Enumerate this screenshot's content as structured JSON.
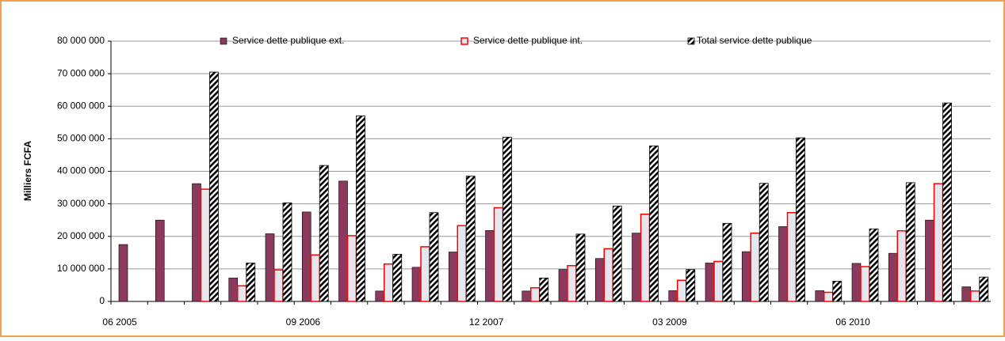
{
  "chart_data": {
    "type": "bar",
    "y_axis_label": "Milliers FCFA",
    "categories": [
      "06 2005",
      null,
      null,
      null,
      null,
      "09 2006",
      null,
      null,
      null,
      null,
      "12 2007",
      null,
      null,
      null,
      null,
      "03 2009",
      null,
      null,
      null,
      null,
      "06 2010",
      null,
      null,
      null
    ],
    "series": [
      {
        "name": "Service dette publique ext.",
        "color": "#8b3a5e",
        "values": [
          17500000,
          25000000,
          36200000,
          7200000,
          20800000,
          27500000,
          37000000,
          3200000,
          10500000,
          15200000,
          21800000,
          3200000,
          9800000,
          13200000,
          21000000,
          3300000,
          11800000,
          15300000,
          23000000,
          3300000,
          11700000,
          14800000,
          25000000,
          4500000
        ]
      },
      {
        "name": "Service dette publique int.",
        "color": "#ff0000",
        "values": [
          null,
          null,
          34500000,
          4800000,
          9700000,
          14300000,
          20200000,
          11500000,
          16800000,
          23300000,
          28800000,
          4200000,
          11000000,
          16200000,
          26800000,
          6500000,
          12300000,
          21000000,
          27300000,
          2800000,
          10700000,
          21700000,
          36200000,
          3200000
        ]
      },
      {
        "name": "Total service dette publique",
        "color": "#000000",
        "values": [
          null,
          null,
          70500000,
          11800000,
          30300000,
          41800000,
          57000000,
          14500000,
          27300000,
          38500000,
          50500000,
          7200000,
          20700000,
          29300000,
          47800000,
          9800000,
          24000000,
          36300000,
          50300000,
          6200000,
          22300000,
          36500000,
          61000000,
          7500000
        ]
      }
    ],
    "ylim": [
      0,
      80000000
    ],
    "yticks": [
      {
        "value": 0,
        "label": "0"
      },
      {
        "value": 10000000,
        "label": "10 000 000"
      },
      {
        "value": 20000000,
        "label": "20 000 000"
      },
      {
        "value": 30000000,
        "label": "30 000 000"
      },
      {
        "value": 40000000,
        "label": "40 000 000"
      },
      {
        "value": 50000000,
        "label": "50 000 000"
      },
      {
        "value": 60000000,
        "label": "60 000 000"
      },
      {
        "value": 70000000,
        "label": "70 000 000"
      },
      {
        "value": 80000000,
        "label": "80 000 000"
      }
    ],
    "grid": true
  }
}
